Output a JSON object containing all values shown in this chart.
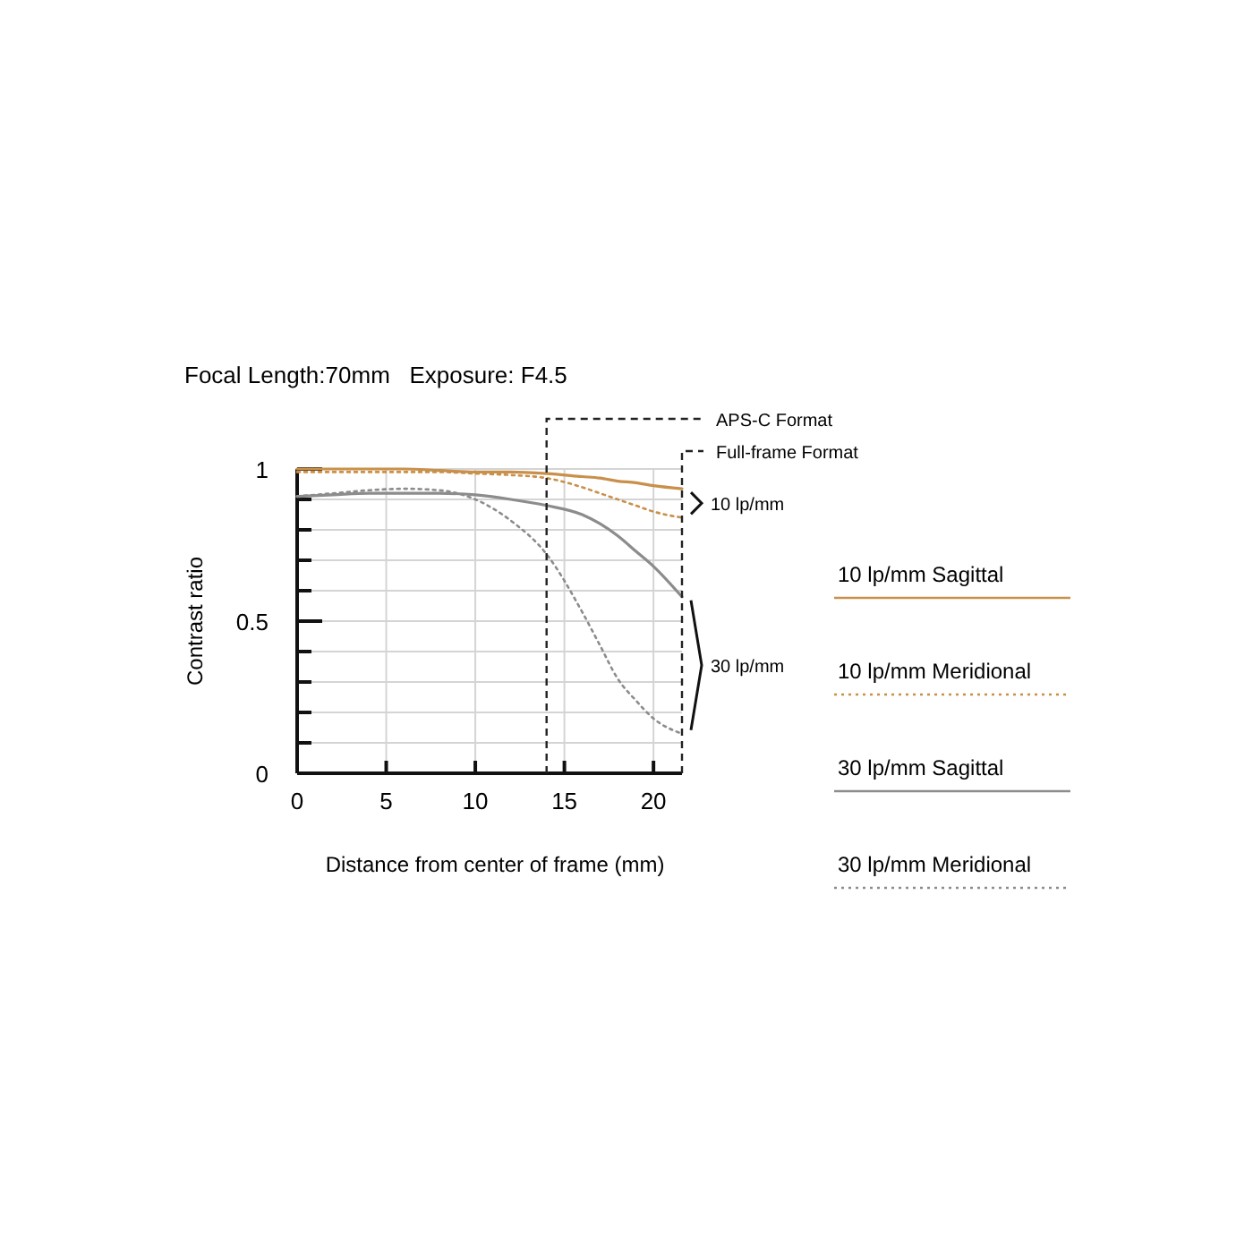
{
  "chart_data": {
    "type": "line",
    "title": "Focal Length:70mm   Exposure: F4.5",
    "xlabel": "Distance from center of frame (mm)",
    "ylabel": "Contrast ratio",
    "xlim": [
      0,
      21.6
    ],
    "ylim": [
      0,
      1
    ],
    "xticks": [
      0,
      5,
      10,
      15,
      20
    ],
    "yticks": [
      0,
      {
        "value": 0.1,
        "label": null
      },
      {
        "value": 0.2,
        "label": null
      },
      {
        "value": 0.3,
        "label": null
      },
      {
        "value": 0.4,
        "label": null
      },
      0.5,
      {
        "value": 0.6,
        "label": null
      },
      {
        "value": 0.7,
        "label": null
      },
      {
        "value": 0.8,
        "label": null
      },
      {
        "value": 0.9,
        "label": null
      },
      1
    ],
    "grid": true,
    "legend": "right",
    "series": [
      {
        "name": "10 lp/mm Sagittal",
        "color": "#c8904a",
        "line_style": "solid",
        "x": [
          0,
          2,
          4,
          6,
          8,
          10,
          12,
          14,
          16,
          17,
          18,
          19,
          20,
          21.6
        ],
        "values": [
          1,
          1,
          1,
          1,
          0.995,
          0.99,
          0.99,
          0.985,
          0.975,
          0.97,
          0.96,
          0.955,
          0.945,
          0.935
        ]
      },
      {
        "name": "10 lp/mm Meridional",
        "color": "#c8904a",
        "line_style": "dotted",
        "x": [
          0,
          2,
          4,
          6,
          8,
          10,
          12,
          14,
          16,
          17,
          18,
          19,
          20,
          21.6
        ],
        "values": [
          0.99,
          0.99,
          0.99,
          0.99,
          0.99,
          0.985,
          0.98,
          0.97,
          0.94,
          0.92,
          0.9,
          0.88,
          0.86,
          0.84
        ]
      },
      {
        "name": "30 lp/mm Sagittal",
        "color": "#8c8c8c",
        "line_style": "solid",
        "x": [
          0,
          2,
          4,
          6,
          8,
          10,
          12,
          14,
          16,
          17,
          18,
          19,
          20,
          21.6
        ],
        "values": [
          0.91,
          0.915,
          0.92,
          0.92,
          0.92,
          0.915,
          0.9,
          0.88,
          0.85,
          0.82,
          0.78,
          0.73,
          0.68,
          0.58
        ]
      },
      {
        "name": "30 lp/mm Meridional",
        "color": "#8c8c8c",
        "line_style": "dotted",
        "x": [
          0,
          2,
          4,
          6,
          8,
          10,
          12,
          14,
          16,
          17,
          18,
          19,
          20,
          21.6
        ],
        "values": [
          0.91,
          0.92,
          0.93,
          0.935,
          0.93,
          0.9,
          0.83,
          0.72,
          0.53,
          0.42,
          0.31,
          0.24,
          0.18,
          0.13
        ]
      }
    ],
    "ref_lines": [
      {
        "axis": "x",
        "value": 14,
        "label": "APS-C Format",
        "line_style": "dashed",
        "color": "#222222"
      },
      {
        "axis": "x",
        "value": 21.6,
        "label": "Full-frame Format",
        "line_style": "dashed",
        "color": "#222222"
      }
    ],
    "annotations": [
      "10 lp/mm",
      "30 lp/mm"
    ]
  }
}
